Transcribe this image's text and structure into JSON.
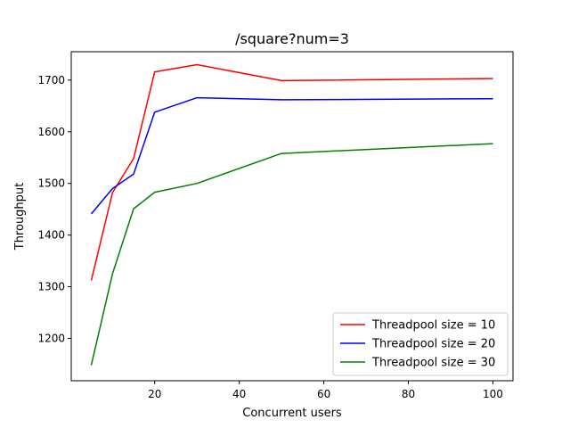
{
  "chart_data": {
    "type": "line",
    "title": "/square?num=3",
    "xlabel": "Concurrent users",
    "ylabel": "Throughput",
    "xlim": [
      0.25,
      104.75
    ],
    "ylim": [
      1118,
      1755
    ],
    "xticks": [
      20,
      40,
      60,
      80,
      100
    ],
    "yticks": [
      1200,
      1300,
      1400,
      1500,
      1600,
      1700
    ],
    "grid": false,
    "legend_position": "lower-right",
    "series": [
      {
        "name": "Threadpool size = 10",
        "color": "#ff0000",
        "x": [
          5,
          10,
          15,
          20,
          30,
          50,
          100
        ],
        "y": [
          1312,
          1482,
          1548,
          1716,
          1730,
          1699,
          1703
        ]
      },
      {
        "name": "Threadpool size = 20",
        "color": "#0000ff",
        "x": [
          5,
          10,
          15,
          20,
          30,
          50,
          100
        ],
        "y": [
          1441,
          1490,
          1518,
          1638,
          1666,
          1662,
          1664
        ]
      },
      {
        "name": "Threadpool size = 30",
        "color": "#008000",
        "x": [
          5,
          10,
          15,
          20,
          30,
          50,
          100
        ],
        "y": [
          1148,
          1325,
          1451,
          1483,
          1500,
          1558,
          1577
        ]
      }
    ]
  }
}
